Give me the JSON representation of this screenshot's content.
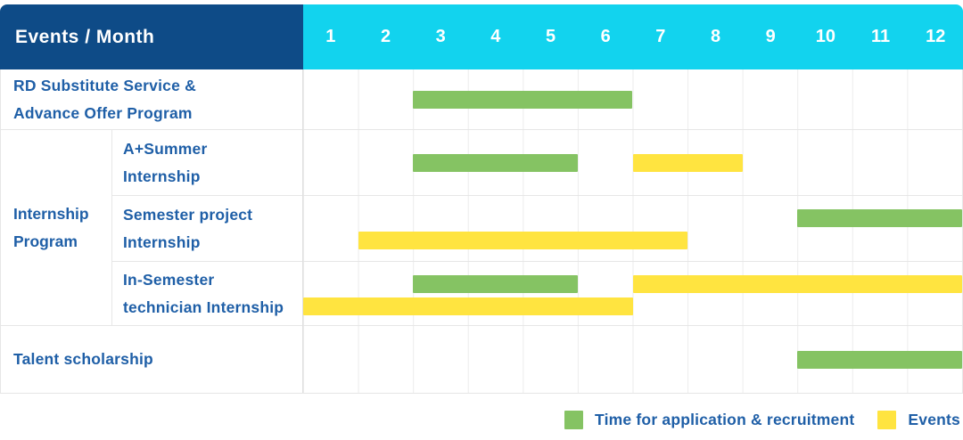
{
  "header": {
    "events_month_label": "Events / Month",
    "months": [
      "1",
      "2",
      "3",
      "4",
      "5",
      "6",
      "7",
      "8",
      "9",
      "10",
      "11",
      "12"
    ]
  },
  "colors": {
    "header_navy": "#0e4b87",
    "header_cyan": "#12d3ee",
    "label_blue": "#1f5fa7",
    "bar_green": "#85c363",
    "bar_yellow": "#ffe440",
    "grid_line": "#e6e6e6"
  },
  "chart_data": {
    "type": "gantt",
    "x_axis_unit": "month",
    "x_ticks": [
      1,
      2,
      3,
      4,
      5,
      6,
      7,
      8,
      9,
      10,
      11,
      12
    ],
    "group_label": "Internship Program",
    "group_label_lines": [
      "Internship",
      "Program"
    ],
    "rows": [
      {
        "id": "rd-substitute",
        "group": null,
        "label": "RD Substitute Service & Advance Offer Program",
        "label_lines": [
          "RD Substitute Service &",
          "Advance Offer Program"
        ],
        "bars": [
          {
            "type": "application",
            "start_month": 3,
            "end_month": 6,
            "lane": "single"
          }
        ]
      },
      {
        "id": "a-plus-summer-internship",
        "group": "Internship Program",
        "label": "A+Summer Internship",
        "label_lines": [
          "A+Summer",
          "Internship"
        ],
        "bars": [
          {
            "type": "application",
            "start_month": 3,
            "end_month": 5,
            "lane": "single"
          },
          {
            "type": "event",
            "start_month": 7,
            "end_month": 8,
            "lane": "single"
          }
        ]
      },
      {
        "id": "semester-project-internship",
        "group": "Internship Program",
        "label": "Semester project Internship",
        "label_lines": [
          "Semester project",
          "Internship"
        ],
        "bars": [
          {
            "type": "application",
            "start_month": 10,
            "end_month": 12,
            "lane": "top"
          },
          {
            "type": "event",
            "start_month": 2,
            "end_month": 7,
            "lane": "bottom"
          }
        ]
      },
      {
        "id": "in-semester-technician-internship",
        "group": "Internship Program",
        "label": "In-Semester technician Internship",
        "label_lines": [
          "In-Semester",
          "technician Internship"
        ],
        "bars": [
          {
            "type": "application",
            "start_month": 3,
            "end_month": 5,
            "lane": "top"
          },
          {
            "type": "event",
            "start_month": 7,
            "end_month": 12,
            "lane": "top"
          },
          {
            "type": "event",
            "start_month": 1,
            "end_month": 6,
            "lane": "bottom"
          }
        ]
      },
      {
        "id": "talent-scholarship",
        "group": null,
        "label": "Talent scholarship",
        "label_lines": [
          "Talent scholarship"
        ],
        "bars": [
          {
            "type": "application",
            "start_month": 10,
            "end_month": 12,
            "lane": "single"
          }
        ]
      }
    ],
    "legend": [
      {
        "type": "application",
        "label": "Time for application & recruitment",
        "color": "#85c363"
      },
      {
        "type": "event",
        "label": "Events",
        "color": "#ffe440"
      }
    ]
  }
}
